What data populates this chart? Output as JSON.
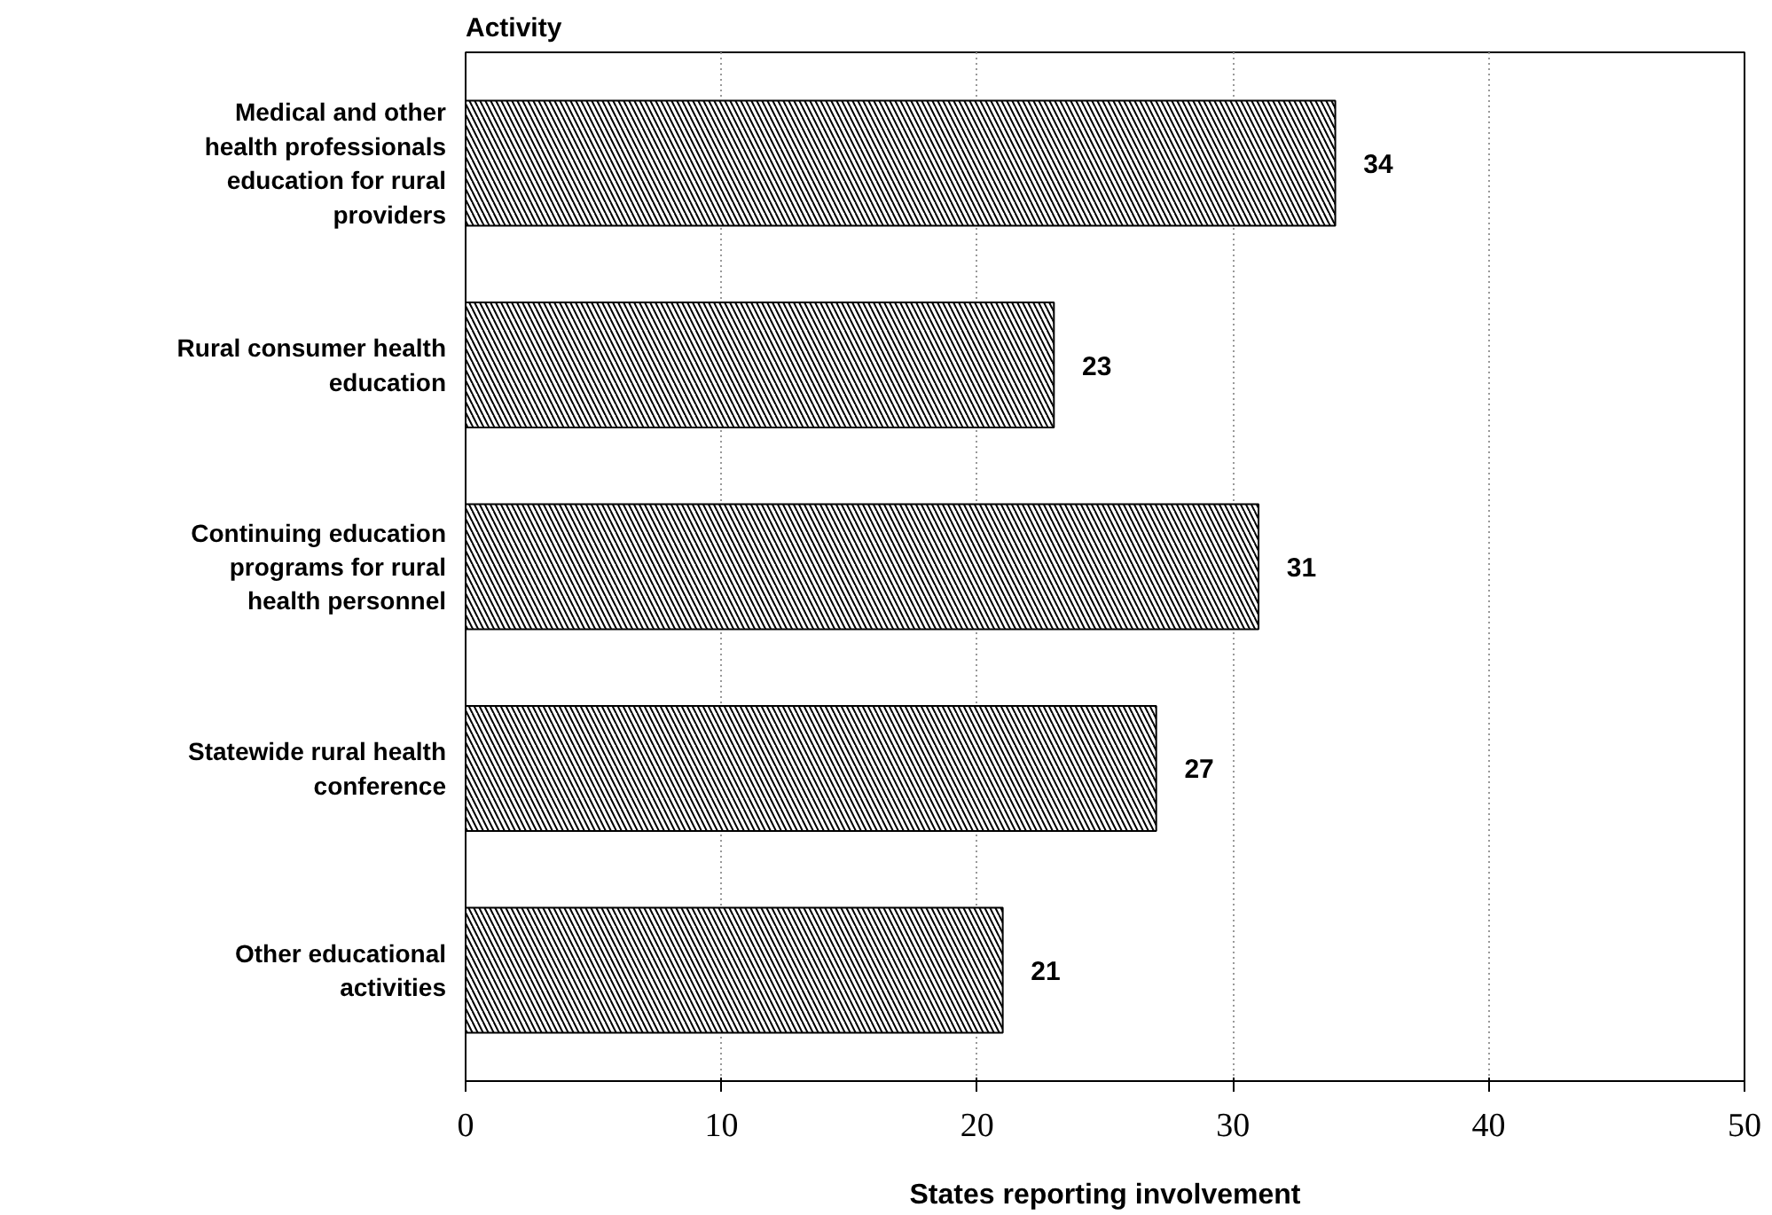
{
  "chart_data": {
    "type": "bar",
    "orientation": "horizontal",
    "ylabel": "Activity",
    "xlabel": "States reporting involvement",
    "categories": [
      "Medical and other health professionals education for rural providers",
      "Rural consumer health education",
      "Continuing education programs for rural health personnel",
      "Statewide rural health conference",
      "Other educational activities"
    ],
    "values": [
      34,
      23,
      31,
      27,
      21
    ],
    "data_labels": true,
    "color": "#000000",
    "xlim": [
      0,
      50
    ],
    "xticks": [
      0,
      10,
      20,
      30,
      40,
      50
    ],
    "grid": "x"
  }
}
